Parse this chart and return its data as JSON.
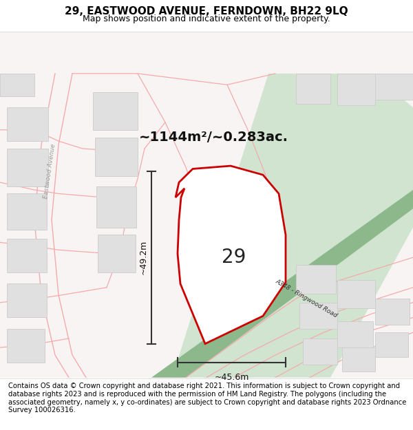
{
  "title": "29, EASTWOOD AVENUE, FERNDOWN, BH22 9LQ",
  "subtitle": "Map shows position and indicative extent of the property.",
  "footer": "Contains OS data © Crown copyright and database right 2021. This information is subject to Crown copyright and database rights 2023 and is reproduced with the permission of HM Land Registry. The polygons (including the associated geometry, namely x, y co-ordinates) are subject to Crown copyright and database rights 2023 Ordnance Survey 100026316.",
  "map_bg": "#f8f4f4",
  "road_green_color": "#d0e4d0",
  "road_stripe_color": "#8cb88c",
  "plot_fill": "#ffffff",
  "plot_border": "#cc0000",
  "building_fill": "#e0e0e0",
  "building_border": "#cccccc",
  "road_line_color": "#f5aaaa",
  "area_text": "~1144m²/~0.283ac.",
  "number_text": "29",
  "dim_width": "~45.6m",
  "dim_height": "~49.2m",
  "title_fontsize": 11,
  "subtitle_fontsize": 9,
  "footer_fontsize": 7.2
}
